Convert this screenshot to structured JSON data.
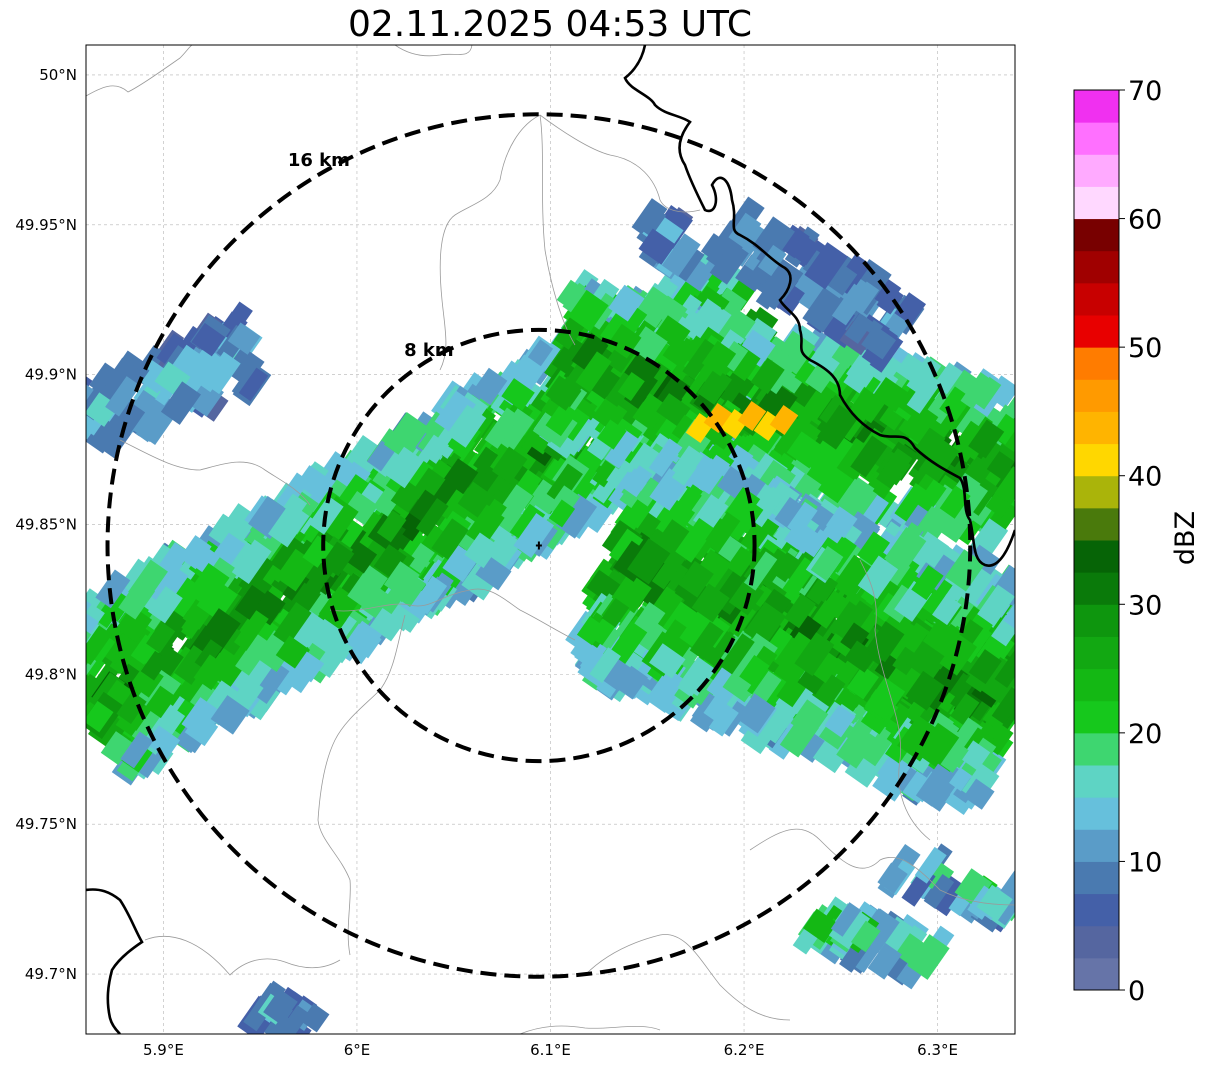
{
  "title": "02.11.2025 04:53 UTC",
  "map": {
    "lon_range": [
      5.86,
      6.34
    ],
    "lat_range": [
      49.68,
      50.01
    ],
    "lon_ticks": [
      {
        "value": 5.9,
        "label": "5.9°E"
      },
      {
        "value": 6.0,
        "label": "6°E"
      },
      {
        "value": 6.1,
        "label": "6.1°E"
      },
      {
        "value": 6.2,
        "label": "6.2°E"
      },
      {
        "value": 6.3,
        "label": "6.3°E"
      }
    ],
    "lat_ticks": [
      {
        "value": 49.7,
        "label": "49.7°N"
      },
      {
        "value": 49.75,
        "label": "49.75°N"
      },
      {
        "value": 49.8,
        "label": "49.8°N"
      },
      {
        "value": 49.85,
        "label": "49.85°N"
      },
      {
        "value": 49.9,
        "label": "49.9°N"
      },
      {
        "value": 49.95,
        "label": "49.95°N"
      },
      {
        "value": 50.0,
        "label": "50°N"
      }
    ],
    "gridlines": true,
    "radar_center": {
      "lon": 6.094,
      "lat": 49.843
    },
    "range_rings": [
      {
        "radius_km": 8,
        "label": "8 km"
      },
      {
        "radius_km": 16,
        "label": "16 km"
      }
    ]
  },
  "colorbar": {
    "label": "dBZ",
    "min": 0,
    "max": 70,
    "tick_values": [
      0,
      10,
      20,
      30,
      40,
      50,
      60,
      70
    ],
    "tick_labels": [
      "0",
      "10",
      "20",
      "30",
      "40",
      "50",
      "60",
      "70"
    ],
    "colors": [
      "#6674a8",
      "#5566a0",
      "#4460a8",
      "#4a7ab0",
      "#5a9cc8",
      "#66c0dc",
      "#5ed4c4",
      "#3ed670",
      "#16c81c",
      "#14b814",
      "#12a812",
      "#0e960e",
      "#0a7a0a",
      "#066406",
      "#4a7a0c",
      "#aab40a",
      "#ffd700",
      "#ffb400",
      "#ff9a00",
      "#ff7c00",
      "#e80000",
      "#c80000",
      "#a00000",
      "#780000",
      "#ffd8ff",
      "#ffaaff",
      "#ff70ff",
      "#f030f0"
    ]
  }
}
